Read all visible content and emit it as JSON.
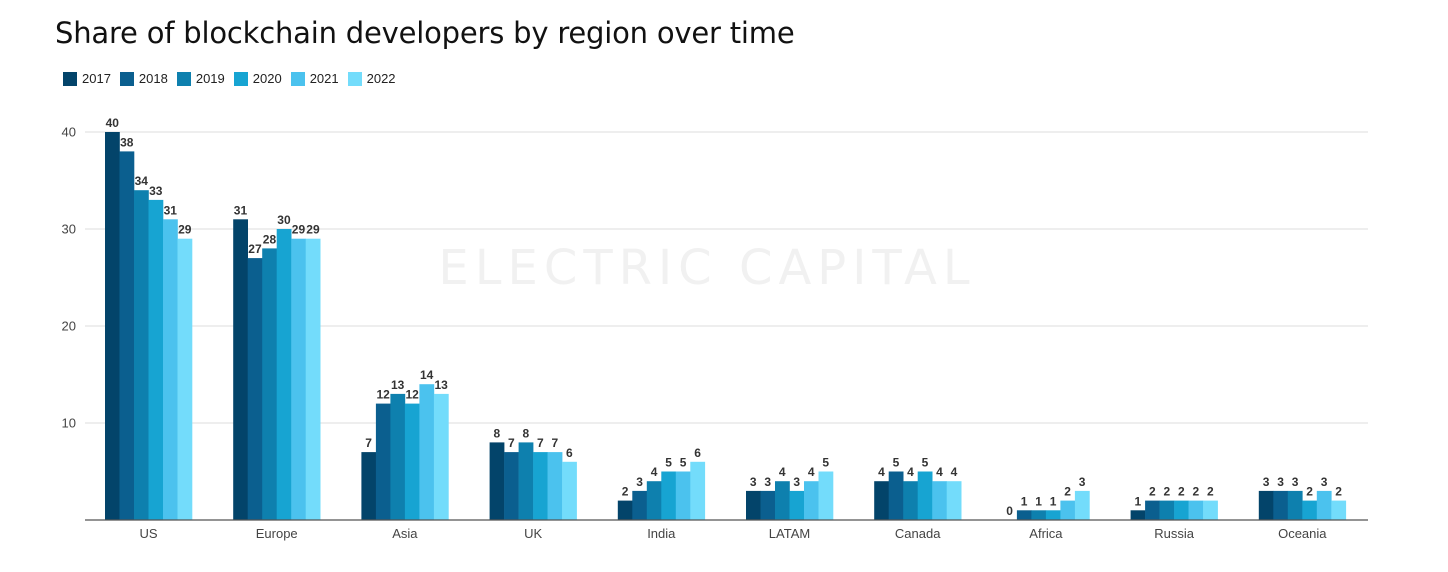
{
  "title": "Share of blockchain developers by region over time",
  "watermark": "ELECTRIC CAPITAL",
  "chart_data": {
    "type": "bar",
    "title": "Share of blockchain developers by region over time",
    "xlabel": "",
    "ylabel": "",
    "ylim": [
      0,
      40
    ],
    "yticks": [
      10,
      20,
      30,
      40
    ],
    "grid": true,
    "legend_position": "top-left",
    "categories": [
      "US",
      "Europe",
      "Asia",
      "UK",
      "India",
      "LATAM",
      "Canada",
      "Africa",
      "Russia",
      "Oceania"
    ],
    "series": [
      {
        "name": "2017",
        "color": "#03446a",
        "values": [
          40,
          31,
          7,
          8,
          2,
          3,
          4,
          0,
          1,
          3
        ]
      },
      {
        "name": "2018",
        "color": "#0b5f8f",
        "values": [
          38,
          27,
          12,
          7,
          3,
          3,
          5,
          1,
          2,
          3
        ]
      },
      {
        "name": "2019",
        "color": "#0e80ae",
        "values": [
          34,
          28,
          13,
          8,
          4,
          4,
          4,
          1,
          2,
          3
        ]
      },
      {
        "name": "2020",
        "color": "#17a4d2",
        "values": [
          33,
          30,
          12,
          7,
          5,
          3,
          5,
          1,
          2,
          2
        ]
      },
      {
        "name": "2021",
        "color": "#4bc2ee",
        "values": [
          31,
          29,
          14,
          7,
          5,
          4,
          4,
          2,
          2,
          3
        ]
      },
      {
        "name": "2022",
        "color": "#73dcfb",
        "values": [
          29,
          29,
          13,
          6,
          6,
          5,
          4,
          3,
          2,
          2
        ]
      }
    ]
  }
}
